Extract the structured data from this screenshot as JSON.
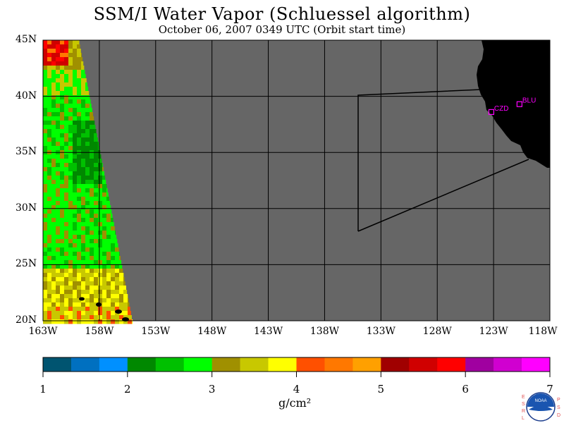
{
  "title": "SSM/I Water Vapor (Schluessel algorithm)",
  "subtitle": "October 06, 2007  0349 UTC  (Orbit start time)",
  "map": {
    "lat_labels": [
      "45N",
      "40N",
      "35N",
      "30N",
      "25N",
      "20N"
    ],
    "lon_labels": [
      "163W",
      "158W",
      "153W",
      "148W",
      "143W",
      "138W",
      "133W",
      "128W",
      "123W",
      "118W"
    ],
    "lat_range": [
      20,
      45
    ],
    "lon_range": [
      -163,
      -118
    ],
    "stations": [
      {
        "id": "CZD",
        "lat": 38.6,
        "lon": -123.2
      },
      {
        "id": "BLU",
        "lat": 39.3,
        "lon": -120.7
      }
    ],
    "colors": {
      "no_data": "#666666",
      "land": "#000000",
      "grid": "#000000",
      "station": "#ff00ff"
    }
  },
  "colorbar": {
    "ticks": [
      "1",
      "2",
      "3",
      "4",
      "5",
      "6",
      "7"
    ],
    "units": "g/cm²",
    "colors": [
      "#005470",
      "#0070c0",
      "#0090ff",
      "#008800",
      "#00c000",
      "#00ff00",
      "#a09000",
      "#c8c800",
      "#ffff00",
      "#ff5000",
      "#ff7800",
      "#ffa000",
      "#a00000",
      "#d00000",
      "#ff0000",
      "#a000a0",
      "#d000d0",
      "#ff00ff"
    ]
  },
  "logo": {
    "left_letters": "ESRL",
    "right_letters": "PSD",
    "center": "NOAA"
  }
}
